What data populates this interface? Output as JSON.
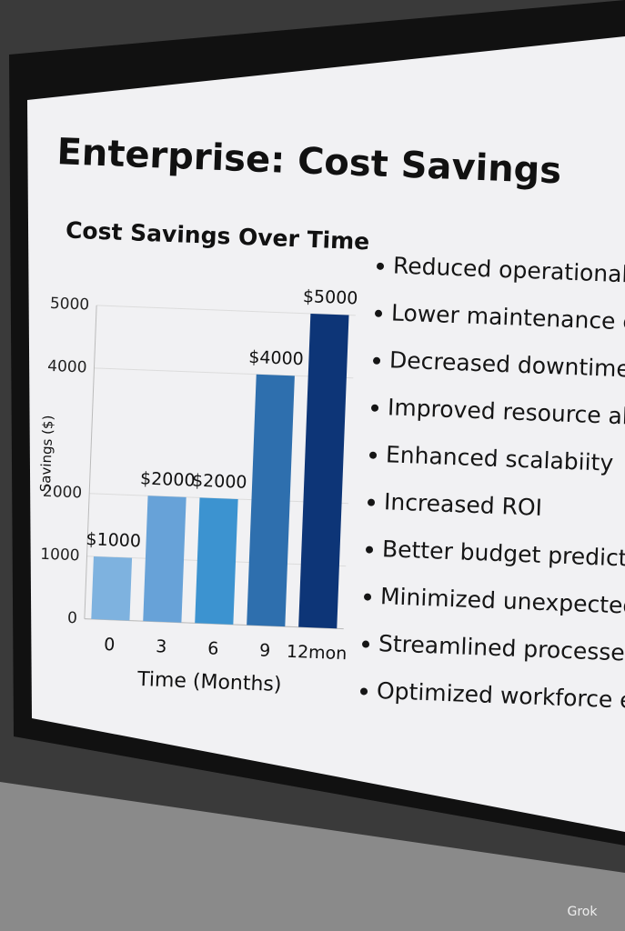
{
  "slide_title": "Enterprise: Cost Savings",
  "bullets": [
    "Reduced operational costs",
    "Lower maintenance expense",
    "Decreased downtime",
    "Improved resource allocatio",
    "Enhanced scalabiity",
    "Increased ROI",
    "Better budget predictability",
    "Minimized unexpected costs",
    "Streamlined processes",
    "Optimized workforce efficien"
  ],
  "watermark": "Grok",
  "chart_data": {
    "type": "bar",
    "title": "Cost Savings Over Time",
    "categories": [
      "0",
      "3",
      "6",
      "9",
      "12mon"
    ],
    "values": [
      1000,
      2000,
      2000,
      4000,
      5000
    ],
    "value_labels": [
      "$1000",
      "$2000",
      "$2000",
      "$4000",
      "$5000"
    ],
    "colors": [
      "#7eb2df",
      "#67a2d8",
      "#3c93d0",
      "#2e6fae",
      "#0d3577"
    ],
    "x_label": "Time (Months)",
    "y_label": "Savings ($)",
    "ylim": [
      0,
      5000
    ],
    "yticks": [
      0,
      1000,
      2000,
      4000,
      5000
    ],
    "grid": true
  }
}
